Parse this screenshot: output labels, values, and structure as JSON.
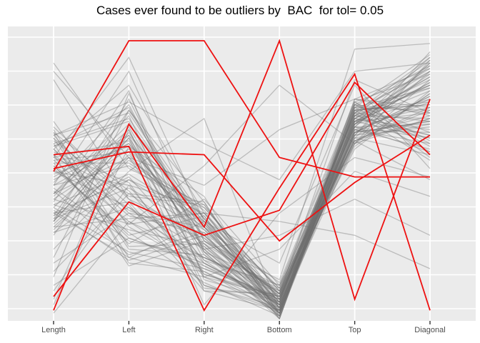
{
  "title": "Cases ever found to be outliers by  BAC  for tol= 0.05",
  "colors": {
    "outlier_line": "#EE1111",
    "case_line": "#6F6F6F",
    "panel_background": "#EBEBEB",
    "gridline": "#FFFFFF",
    "axis_text": "#4D4D4D",
    "tick_mark": "#333333",
    "title_text": "#000000"
  },
  "chart_data": {
    "type": "line",
    "variant": "parallel-coordinates",
    "title": "Cases ever found to be outliers by  BAC  for tol= 0.05",
    "axes": [
      "Length",
      "Left",
      "Right",
      "Bottom",
      "Top",
      "Diagonal"
    ],
    "xlabel": "",
    "ylabel": "",
    "ylim": [
      0,
      1
    ],
    "grid": true,
    "legend": "none",
    "outlier_series": [
      [
        0.53,
        1.0,
        1.0,
        0.58,
        0.51,
        0.51
      ],
      [
        0.59,
        0.62,
        0.03,
        0.47,
        0.88,
        0.03
      ],
      [
        0.03,
        0.7,
        0.33,
        1.0,
        0.07,
        0.79
      ],
      [
        0.08,
        0.42,
        0.3,
        0.39,
        0.85,
        0.59
      ],
      [
        0.54,
        0.6,
        0.59,
        0.28,
        0.49,
        0.66
      ]
    ],
    "background_series": [
      [
        0.61,
        0.84,
        0.38,
        0.07,
        0.74,
        0.84
      ],
      [
        0.5,
        0.63,
        0.27,
        0.04,
        0.69,
        0.92
      ],
      [
        0.66,
        0.38,
        0.22,
        0.09,
        0.64,
        0.76
      ],
      [
        0.38,
        0.5,
        0.33,
        0.02,
        0.72,
        0.87
      ],
      [
        0.56,
        0.27,
        0.43,
        0.12,
        0.77,
        0.63
      ],
      [
        0.45,
        0.73,
        0.15,
        0.03,
        0.67,
        0.71
      ],
      [
        0.69,
        0.43,
        0.3,
        0.08,
        0.62,
        0.81
      ],
      [
        0.32,
        0.58,
        0.2,
        0.06,
        0.79,
        0.9
      ],
      [
        0.63,
        0.22,
        0.35,
        0.0,
        0.73,
        0.66
      ],
      [
        0.4,
        0.66,
        0.12,
        0.04,
        0.68,
        0.78
      ],
      [
        0.53,
        0.48,
        0.4,
        0.1,
        0.76,
        0.95
      ],
      [
        0.35,
        0.79,
        0.25,
        0.02,
        0.71,
        0.74
      ],
      [
        0.71,
        0.33,
        0.18,
        0.07,
        0.65,
        0.89
      ],
      [
        0.48,
        0.55,
        0.37,
        0.01,
        0.78,
        0.58
      ],
      [
        0.59,
        0.19,
        0.28,
        0.09,
        0.63,
        0.93
      ],
      [
        0.3,
        0.69,
        0.23,
        0.05,
        0.75,
        0.77
      ],
      [
        0.65,
        0.41,
        0.1,
        0.03,
        0.7,
        0.85
      ],
      [
        0.43,
        0.61,
        0.33,
        0.13,
        0.78,
        0.64
      ],
      [
        0.55,
        0.29,
        0.2,
        0.06,
        0.66,
        0.96
      ],
      [
        0.37,
        0.75,
        0.42,
        0.02,
        0.73,
        0.72
      ],
      [
        0.67,
        0.46,
        0.16,
        0.08,
        0.61,
        0.82
      ],
      [
        0.46,
        0.23,
        0.31,
        0.0,
        0.75,
        0.6
      ],
      [
        0.58,
        0.64,
        0.26,
        0.05,
        0.7,
        0.88
      ],
      [
        0.33,
        0.36,
        0.38,
        0.11,
        0.64,
        0.75
      ],
      [
        0.62,
        0.71,
        0.21,
        0.03,
        0.77,
        0.91
      ],
      [
        0.41,
        0.52,
        0.35,
        0.07,
        0.72,
        0.68
      ],
      [
        0.54,
        0.31,
        0.13,
        0.01,
        0.67,
        0.8
      ],
      [
        0.36,
        0.67,
        0.29,
        0.09,
        0.74,
        0.94
      ],
      [
        0.64,
        0.44,
        0.41,
        0.04,
        0.69,
        0.7
      ],
      [
        0.49,
        0.77,
        0.24,
        0.12,
        0.63,
        0.86
      ],
      [
        0.57,
        0.35,
        0.17,
        0.02,
        0.76,
        0.62
      ],
      [
        0.34,
        0.59,
        0.32,
        0.06,
        0.71,
        0.79
      ],
      [
        0.68,
        0.26,
        0.27,
        0.1,
        0.66,
        0.92
      ],
      [
        0.44,
        0.7,
        0.36,
        0.03,
        0.79,
        0.73
      ],
      [
        0.6,
        0.49,
        0.11,
        0.08,
        0.73,
        0.83
      ],
      [
        0.39,
        0.21,
        0.3,
        0.05,
        0.68,
        0.67
      ],
      [
        0.52,
        0.62,
        0.44,
        0.01,
        0.75,
        0.89
      ],
      [
        0.31,
        0.4,
        0.19,
        0.07,
        0.7,
        0.76
      ],
      [
        0.66,
        0.74,
        0.34,
        0.04,
        0.65,
        0.59
      ],
      [
        0.47,
        0.28,
        0.22,
        0.11,
        0.72,
        0.84
      ],
      [
        0.56,
        0.56,
        0.39,
        0.02,
        0.67,
        0.71
      ],
      [
        0.42,
        0.82,
        0.14,
        0.06,
        0.74,
        0.9
      ],
      [
        0.61,
        0.37,
        0.31,
        0.09,
        0.69,
        0.65
      ],
      [
        0.35,
        0.65,
        0.25,
        0.03,
        0.63,
        0.81
      ],
      [
        0.58,
        0.45,
        0.42,
        0.0,
        0.77,
        0.74
      ],
      [
        0.4,
        0.24,
        0.18,
        0.08,
        0.71,
        0.87
      ],
      [
        0.63,
        0.72,
        0.33,
        0.05,
        0.66,
        0.69
      ],
      [
        0.37,
        0.51,
        0.21,
        0.12,
        0.73,
        0.93
      ],
      [
        0.55,
        0.3,
        0.37,
        0.02,
        0.68,
        0.61
      ],
      [
        0.45,
        0.68,
        0.16,
        0.07,
        0.75,
        0.78
      ],
      [
        0.59,
        0.39,
        0.29,
        0.04,
        0.7,
        0.85
      ],
      [
        0.33,
        0.57,
        0.4,
        0.1,
        0.64,
        0.72
      ],
      [
        0.65,
        0.25,
        0.23,
        0.01,
        0.78,
        0.88
      ],
      [
        0.48,
        0.63,
        0.35,
        0.06,
        0.72,
        0.66
      ],
      [
        0.38,
        0.42,
        0.12,
        0.03,
        0.67,
        0.8
      ],
      [
        0.62,
        0.76,
        0.28,
        0.09,
        0.74,
        0.57
      ],
      [
        0.43,
        0.34,
        0.38,
        0.05,
        0.69,
        0.91
      ],
      [
        0.57,
        0.6,
        0.24,
        0.0,
        0.76,
        0.75
      ],
      [
        0.36,
        0.47,
        0.32,
        0.08,
        0.71,
        0.82
      ],
      [
        0.67,
        0.2,
        0.17,
        0.04,
        0.65,
        0.7
      ],
      [
        0.51,
        0.66,
        0.36,
        0.11,
        0.73,
        0.86
      ],
      [
        0.41,
        0.32,
        0.26,
        0.02,
        0.68,
        0.63
      ],
      [
        0.92,
        0.54,
        0.41,
        0.07,
        0.75,
        0.77
      ],
      [
        0.86,
        0.43,
        0.2,
        0.05,
        0.7,
        0.94
      ],
      [
        0.89,
        0.58,
        0.34,
        0.09,
        0.66,
        0.73
      ],
      [
        0.25,
        0.53,
        0.72,
        0.03,
        0.72,
        0.89
      ],
      [
        0.2,
        0.38,
        0.33,
        0.06,
        0.77,
        0.67
      ],
      [
        0.15,
        0.81,
        0.24,
        0.01,
        0.71,
        0.84
      ],
      [
        0.1,
        0.48,
        0.15,
        0.08,
        0.67,
        0.79
      ],
      [
        0.05,
        0.62,
        0.3,
        0.04,
        0.74,
        0.71
      ],
      [
        0.02,
        0.35,
        0.22,
        0.1,
        0.69,
        0.6
      ],
      [
        0.22,
        0.75,
        0.36,
        0.06,
        0.76,
        0.83
      ],
      [
        0.17,
        0.45,
        0.27,
        0.02,
        0.71,
        0.65
      ],
      [
        0.12,
        0.29,
        0.19,
        0.05,
        0.64,
        0.5
      ],
      [
        0.07,
        0.68,
        0.1,
        0.09,
        0.86,
        0.74
      ],
      [
        0.48,
        0.89,
        0.28,
        0.14,
        0.97,
        0.99
      ],
      [
        0.58,
        0.94,
        0.35,
        0.2,
        0.84,
        0.54
      ],
      [
        0.38,
        0.22,
        0.15,
        0.25,
        0.53,
        0.44
      ],
      [
        0.53,
        0.4,
        0.25,
        0.3,
        0.43,
        0.3
      ],
      [
        0.31,
        0.5,
        0.38,
        0.35,
        0.3,
        0.18
      ],
      [
        0.45,
        0.58,
        0.48,
        0.68,
        0.79,
        0.76
      ],
      [
        0.61,
        0.34,
        0.55,
        0.84,
        0.63,
        0.72
      ],
      [
        0.66,
        0.78,
        0.63,
        0.5,
        0.89,
        0.92
      ],
      [
        0.35,
        0.65,
        0.05,
        0.38,
        0.58,
        0.51
      ]
    ]
  }
}
